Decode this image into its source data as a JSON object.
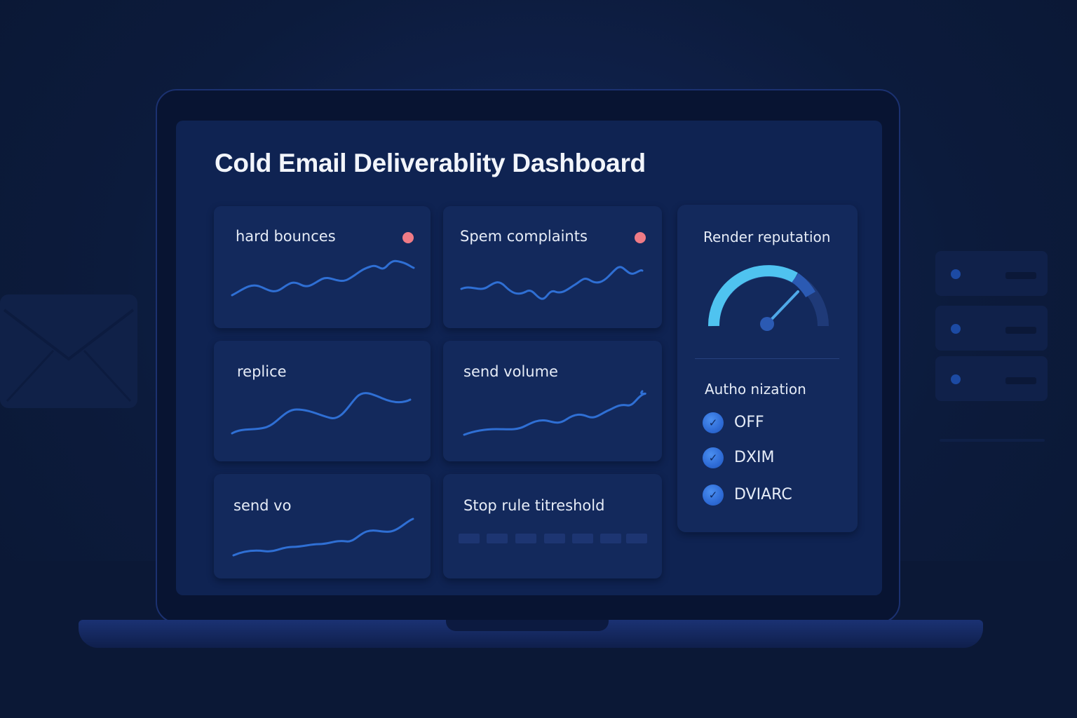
{
  "dashboard": {
    "title": "Cold Email Deliverablity Dashboard"
  },
  "cards": [
    {
      "label": "hard bounces",
      "alert": true
    },
    {
      "label": "Spem complaints",
      "alert": true
    },
    {
      "label": "replice"
    },
    {
      "label": "send volume"
    },
    {
      "label": "send vo"
    },
    {
      "label": "Stop rule titreshold"
    }
  ],
  "reputation": {
    "title": "Render reputation"
  },
  "authorization": {
    "title": "Autho nization",
    "items": [
      {
        "label": "OFF",
        "icon": "check-icon"
      },
      {
        "label": "DXIM",
        "icon": "check-icon"
      },
      {
        "label": "DVIARC",
        "icon": "check-icon"
      }
    ]
  },
  "colors": {
    "background": "#0c1b3c",
    "screen": "#0f2352",
    "card": "#13295c",
    "line": "#2f6fd4",
    "alert": "#ef7b86",
    "gauge_accent": "#4fc3f0"
  }
}
